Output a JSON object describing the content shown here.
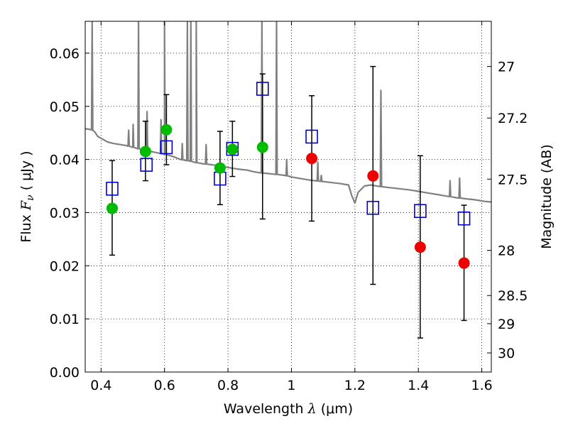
{
  "chart_data": {
    "type": "scatter",
    "xlabel": {
      "pre": "Wavelength  ",
      "sym": "λ",
      "post": " (μm)"
    },
    "ylabel": {
      "pre": "Flux  ",
      "sym": "F",
      "sub": "ν",
      "post": "  ( μJy )"
    },
    "y2label": "Magnitude (AB)",
    "xlim": [
      0.35,
      1.63
    ],
    "ylim": [
      0.0,
      0.066
    ],
    "grid": true,
    "x_ticks": [
      0.4,
      0.6,
      0.8,
      1.0,
      1.2,
      1.4,
      1.6
    ],
    "x_tick_labels": [
      "0.4",
      "0.6",
      "0.8",
      "1",
      "1.2",
      "1.4",
      "1.6"
    ],
    "y_ticks": [
      0.0,
      0.01,
      0.02,
      0.03,
      0.04,
      0.05,
      0.06
    ],
    "y_tick_labels": [
      "0.00",
      "0.01",
      "0.02",
      "0.03",
      "0.04",
      "0.05",
      "0.06"
    ],
    "mag_ticks": [
      {
        "label": "27",
        "flux": 0.0575
      },
      {
        "label": "27.2",
        "flux": 0.0478
      },
      {
        "label": "27.5",
        "flux": 0.0363
      },
      {
        "label": "28",
        "flux": 0.0229
      },
      {
        "label": "28.5",
        "flux": 0.0144
      },
      {
        "label": "29",
        "flux": 0.0091
      },
      {
        "label": "30",
        "flux": 0.0036
      }
    ],
    "colors": {
      "model": "#808080",
      "measured_optical": "#00bb00",
      "measured_nir": "#ee0000",
      "model_photometry": "#0000cc",
      "errorbar": "#000000"
    },
    "series": [
      {
        "kind": "model_photometry",
        "marker": "open-square",
        "points": [
          {
            "x": 0.435,
            "y": 0.0345
          },
          {
            "x": 0.543,
            "y": 0.039
          },
          {
            "x": 0.606,
            "y": 0.0423
          },
          {
            "x": 0.775,
            "y": 0.0364
          },
          {
            "x": 0.814,
            "y": 0.042
          },
          {
            "x": 0.909,
            "y": 0.0533
          },
          {
            "x": 1.064,
            "y": 0.0443
          },
          {
            "x": 1.257,
            "y": 0.0309
          },
          {
            "x": 1.406,
            "y": 0.0303
          },
          {
            "x": 1.544,
            "y": 0.0289
          }
        ]
      },
      {
        "kind": "measured_optical",
        "marker": "filled-circle",
        "points": [
          {
            "x": 0.435,
            "y": 0.0308,
            "lo": 0.022,
            "hi": 0.0398
          },
          {
            "x": 0.54,
            "y": 0.0415,
            "lo": 0.036,
            "hi": 0.0472
          },
          {
            "x": 0.606,
            "y": 0.0456,
            "lo": 0.039,
            "hi": 0.0522
          },
          {
            "x": 0.775,
            "y": 0.0384,
            "lo": 0.0315,
            "hi": 0.0453
          },
          {
            "x": 0.814,
            "y": 0.0419,
            "lo": 0.0368,
            "hi": 0.0472
          },
          {
            "x": 0.909,
            "y": 0.0423,
            "lo": 0.0288,
            "hi": 0.0561
          }
        ]
      },
      {
        "kind": "measured_nir",
        "marker": "filled-circle",
        "points": [
          {
            "x": 1.064,
            "y": 0.0402,
            "lo": 0.0284,
            "hi": 0.052
          },
          {
            "x": 1.257,
            "y": 0.0369,
            "lo": 0.0165,
            "hi": 0.0575
          },
          {
            "x": 1.406,
            "y": 0.0235,
            "lo": 0.0064,
            "hi": 0.0407
          },
          {
            "x": 1.544,
            "y": 0.0205,
            "lo": 0.0097,
            "hi": 0.0314
          }
        ]
      }
    ],
    "model_spectrum": [
      [
        0.35,
        0.0458
      ],
      [
        0.37,
        0.0456
      ],
      [
        0.38,
        0.0452
      ],
      [
        0.39,
        0.0443
      ],
      [
        0.4,
        0.044
      ],
      [
        0.42,
        0.0433
      ],
      [
        0.44,
        0.043
      ],
      [
        0.46,
        0.0428
      ],
      [
        0.48,
        0.0426
      ],
      [
        0.5,
        0.0423
      ],
      [
        0.52,
        0.042
      ],
      [
        0.55,
        0.0416
      ],
      [
        0.58,
        0.0412
      ],
      [
        0.6,
        0.041
      ],
      [
        0.63,
        0.0405
      ],
      [
        0.65,
        0.04
      ],
      [
        0.68,
        0.0397
      ],
      [
        0.7,
        0.0394
      ],
      [
        0.72,
        0.0392
      ],
      [
        0.75,
        0.039
      ],
      [
        0.78,
        0.0387
      ],
      [
        0.8,
        0.0385
      ],
      [
        0.83,
        0.0382
      ],
      [
        0.86,
        0.038
      ],
      [
        0.88,
        0.0377
      ],
      [
        0.9,
        0.0375
      ],
      [
        0.92,
        0.0374
      ],
      [
        0.95,
        0.0372
      ],
      [
        0.98,
        0.037
      ],
      [
        1.0,
        0.0367
      ],
      [
        1.03,
        0.0364
      ],
      [
        1.06,
        0.0361
      ],
      [
        1.09,
        0.0359
      ],
      [
        1.12,
        0.0357
      ],
      [
        1.15,
        0.0355
      ],
      [
        1.18,
        0.0352
      ],
      [
        1.19,
        0.0332
      ],
      [
        1.2,
        0.0318
      ],
      [
        1.21,
        0.0338
      ],
      [
        1.23,
        0.035
      ],
      [
        1.25,
        0.0352
      ],
      [
        1.28,
        0.0349
      ],
      [
        1.31,
        0.0347
      ],
      [
        1.34,
        0.0345
      ],
      [
        1.37,
        0.0343
      ],
      [
        1.4,
        0.034
      ],
      [
        1.43,
        0.0337
      ],
      [
        1.46,
        0.0334
      ],
      [
        1.49,
        0.0331
      ],
      [
        1.52,
        0.0328
      ],
      [
        1.55,
        0.0326
      ],
      [
        1.58,
        0.0324
      ],
      [
        1.61,
        0.0321
      ],
      [
        1.63,
        0.032
      ]
    ],
    "model_lines": [
      {
        "x": 0.372,
        "peak": 0.066
      },
      {
        "x": 0.487,
        "peak": 0.0455
      },
      {
        "x": 0.501,
        "peak": 0.0466
      },
      {
        "x": 0.518,
        "peak": 0.066
      },
      {
        "x": 0.545,
        "peak": 0.049
      },
      {
        "x": 0.589,
        "peak": 0.0475
      },
      {
        "x": 0.6,
        "peak": 0.066
      },
      {
        "x": 0.656,
        "peak": 0.043
      },
      {
        "x": 0.672,
        "peak": 0.066
      },
      {
        "x": 0.683,
        "peak": 0.066
      },
      {
        "x": 0.7,
        "peak": 0.066
      },
      {
        "x": 0.731,
        "peak": 0.0428
      },
      {
        "x": 0.907,
        "peak": 0.066
      },
      {
        "x": 0.953,
        "peak": 0.066
      },
      {
        "x": 0.985,
        "peak": 0.04
      },
      {
        "x": 1.083,
        "peak": 0.0395
      },
      {
        "x": 1.094,
        "peak": 0.037
      },
      {
        "x": 1.282,
        "peak": 0.053
      },
      {
        "x": 1.5,
        "peak": 0.036
      },
      {
        "x": 1.53,
        "peak": 0.0365
      }
    ]
  }
}
